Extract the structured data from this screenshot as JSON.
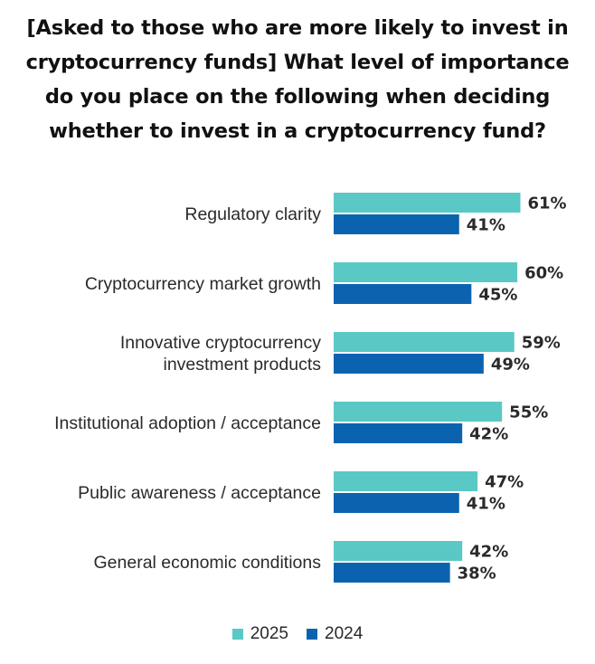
{
  "title_lines": [
    "[Asked to those who are more likely to invest in",
    "cryptocurrency funds] What level of importance",
    "do you place on the following when deciding",
    "whether to invest in a cryptocurrency fund?"
  ],
  "colors": {
    "series_2025": "#5ac8c4",
    "series_2024": "#0b63b0"
  },
  "chart_data": {
    "type": "bar",
    "orientation": "horizontal",
    "title": "[Asked to those who are more likely to invest in cryptocurrency funds] What level of importance do you place on the following when deciding whether to invest in a cryptocurrency fund?",
    "categories": [
      [
        "Regulatory clarity"
      ],
      [
        "Cryptocurrency market growth"
      ],
      [
        "Innovative cryptocurrency",
        "investment products"
      ],
      [
        "Institutional adoption / acceptance"
      ],
      [
        "Public awareness / acceptance"
      ],
      [
        "General economic conditions"
      ]
    ],
    "series": [
      {
        "name": "2025",
        "values": [
          61,
          60,
          59,
          55,
          47,
          42
        ]
      },
      {
        "name": "2024",
        "values": [
          41,
          45,
          49,
          42,
          41,
          38
        ]
      }
    ],
    "value_suffix": "%",
    "xlim": [
      0,
      100
    ],
    "grid": false,
    "legend_position": "bottom-center"
  }
}
